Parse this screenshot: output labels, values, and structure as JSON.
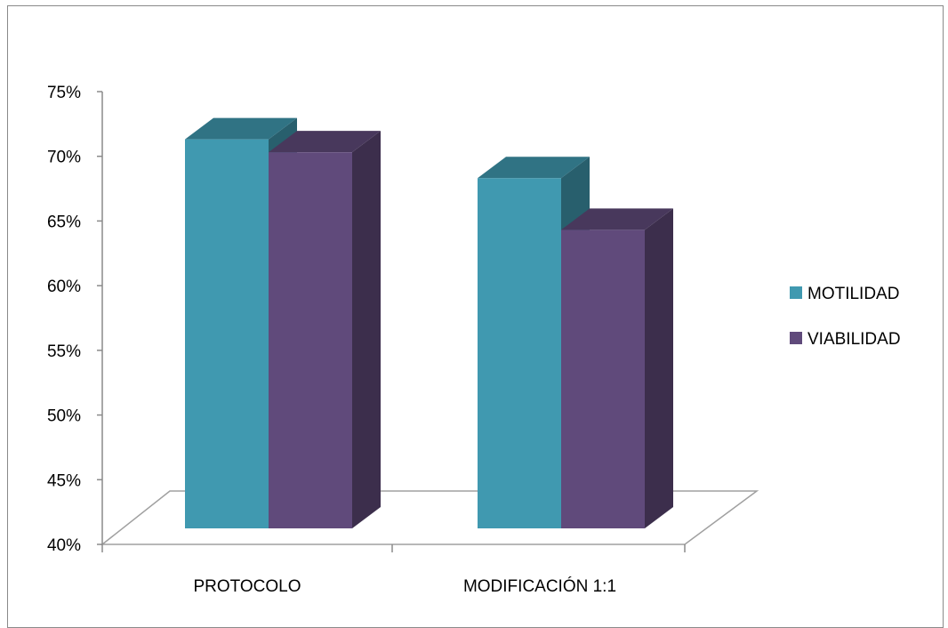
{
  "chart_data": {
    "type": "bar",
    "title": "",
    "xlabel": "",
    "ylabel": "",
    "categories": [
      "PROTOCOLO",
      "MODIFICACIÓN 1:1"
    ],
    "series": [
      {
        "name": "MOTILIDAD",
        "values": [
          0.72,
          0.69
        ],
        "color": "#4099b0"
      },
      {
        "name": "VIABILIDAD",
        "values": [
          0.71,
          0.65
        ],
        "color": "#604a7b"
      }
    ],
    "ylim": [
      0.4,
      0.75
    ],
    "yticks": [
      "40%",
      "45%",
      "50%",
      "55%",
      "60%",
      "65%",
      "70%",
      "75%"
    ],
    "legend_position": "right",
    "style": "3d-clustered-column"
  }
}
